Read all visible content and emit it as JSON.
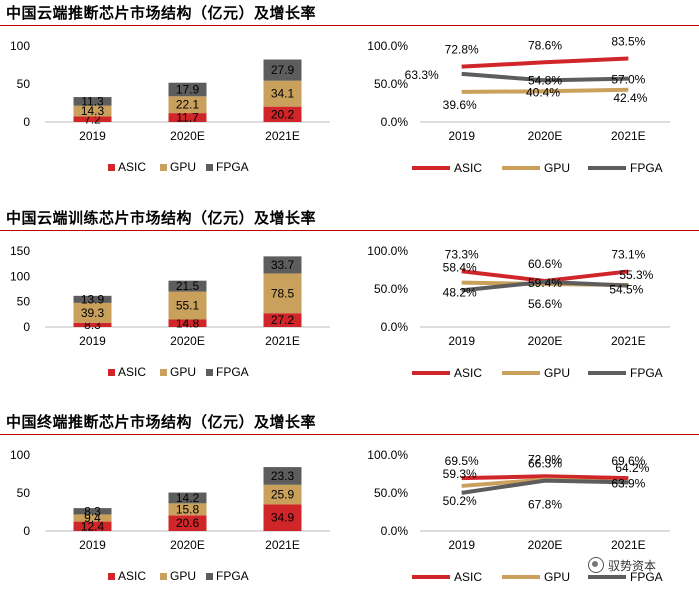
{
  "colors": {
    "asic": "#d0262a",
    "gpu": "#c9a15c",
    "fpga": "#5d5d5d",
    "rule": "#c00000"
  },
  "sections": [
    {
      "title": "中国云端推断芯片市场结构（亿元）及增长率"
    },
    {
      "title": "中国云端训练芯片市场结构（亿元）及增长率"
    },
    {
      "title": "中国终端推断芯片市场结构（亿元）及增长率"
    }
  ],
  "watermark": {
    "text": "驭势资本"
  },
  "chart_data": [
    {
      "type": "bar",
      "stacked": true,
      "categories": [
        "2019",
        "2020E",
        "2021E"
      ],
      "series": [
        {
          "name": "ASIC",
          "values": [
            7.2,
            11.7,
            20.2
          ],
          "labels": [
            "7.2",
            "11.7",
            "20.2"
          ]
        },
        {
          "name": "GPU",
          "values": [
            14.3,
            22.1,
            34.1
          ],
          "labels": [
            "14.3",
            "22.1",
            "34.1"
          ]
        },
        {
          "name": "FPGA",
          "values": [
            11.3,
            17.9,
            27.9
          ],
          "labels": [
            "11.3",
            "17.9",
            "27.9"
          ]
        }
      ],
      "ylim": [
        0,
        100
      ],
      "yticks": [
        "0",
        "50",
        "100"
      ],
      "legend_position": "bottom"
    },
    {
      "type": "line",
      "categories": [
        "2019",
        "2020E",
        "2021E"
      ],
      "series": [
        {
          "name": "ASIC",
          "values": [
            72.8,
            78.6,
            83.5
          ],
          "labels": [
            "72.8%",
            "78.6%",
            "83.5%"
          ]
        },
        {
          "name": "GPU",
          "values": [
            39.6,
            40.4,
            42.4
          ],
          "labels": [
            "39.6%",
            "40.4%",
            "42.4%"
          ]
        },
        {
          "name": "FPGA",
          "values": [
            63.3,
            54.8,
            57.0
          ],
          "labels": [
            "63.3%",
            "54.8%",
            "57.0%"
          ]
        }
      ],
      "ylim": [
        0,
        100
      ],
      "yticks": [
        "0.0%",
        "50.0%",
        "100.0%"
      ],
      "legend_position": "bottom"
    },
    {
      "type": "bar",
      "stacked": true,
      "categories": [
        "2019",
        "2020E",
        "2021E"
      ],
      "series": [
        {
          "name": "ASIC",
          "values": [
            8.3,
            14.8,
            27.2
          ],
          "labels": [
            "8.3",
            "14.8",
            "27.2"
          ]
        },
        {
          "name": "GPU",
          "values": [
            39.3,
            55.1,
            78.5
          ],
          "labels": [
            "39.3",
            "55.1",
            "78.5"
          ]
        },
        {
          "name": "FPGA",
          "values": [
            13.9,
            21.5,
            33.7
          ],
          "labels": [
            "13.9",
            "21.5",
            "33.7"
          ]
        }
      ],
      "ylim": [
        0,
        150
      ],
      "yticks": [
        "0",
        "50",
        "100",
        "150"
      ],
      "legend_position": "bottom"
    },
    {
      "type": "line",
      "categories": [
        "2019",
        "2020E",
        "2021E"
      ],
      "series": [
        {
          "name": "ASIC",
          "values": [
            73.3,
            60.6,
            73.1
          ],
          "labels": [
            "73.3%",
            "60.6%",
            "73.1%"
          ]
        },
        {
          "name": "GPU",
          "values": [
            58.4,
            56.6,
            55.3
          ],
          "labels": [
            "58.4%",
            "56.6%",
            "55.3%"
          ]
        },
        {
          "name": "FPGA",
          "values": [
            48.2,
            59.4,
            54.5
          ],
          "labels": [
            "48.2%",
            "59.4%",
            "54.5%"
          ]
        }
      ],
      "ylim": [
        0,
        100
      ],
      "yticks": [
        "0.0%",
        "50.0%",
        "100.0%"
      ],
      "legend_position": "bottom"
    },
    {
      "type": "bar",
      "stacked": true,
      "categories": [
        "2019",
        "2020E",
        "2021E"
      ],
      "series": [
        {
          "name": "ASIC",
          "values": [
            12.4,
            20.6,
            34.9
          ],
          "labels": [
            "12.4",
            "20.6",
            "34.9"
          ]
        },
        {
          "name": "GPU",
          "values": [
            9.4,
            15.8,
            25.9
          ],
          "labels": [
            "9.4",
            "15.8",
            "25.9"
          ]
        },
        {
          "name": "FPGA",
          "values": [
            8.3,
            14.2,
            23.3
          ],
          "labels": [
            "8.3",
            "14.2",
            "23.3"
          ]
        }
      ],
      "ylim": [
        0,
        100
      ],
      "yticks": [
        "0",
        "50",
        "100"
      ],
      "legend_position": "bottom"
    },
    {
      "type": "line",
      "categories": [
        "2019",
        "2020E",
        "2021E"
      ],
      "series": [
        {
          "name": "ASIC",
          "values": [
            69.5,
            72.0,
            69.6
          ],
          "labels": [
            "69.5%",
            "72.0%",
            "69.6%"
          ]
        },
        {
          "name": "GPU",
          "values": [
            59.3,
            67.8,
            64.2
          ],
          "labels": [
            "59.3%",
            "67.8%",
            "64.2%"
          ]
        },
        {
          "name": "FPGA",
          "values": [
            50.2,
            66.3,
            63.9
          ],
          "labels": [
            "50.2%",
            "66.3%",
            "63.9%"
          ]
        }
      ],
      "ylim": [
        0,
        100
      ],
      "yticks": [
        "0.0%",
        "50.0%",
        "100.0%"
      ],
      "legend_position": "bottom"
    }
  ]
}
